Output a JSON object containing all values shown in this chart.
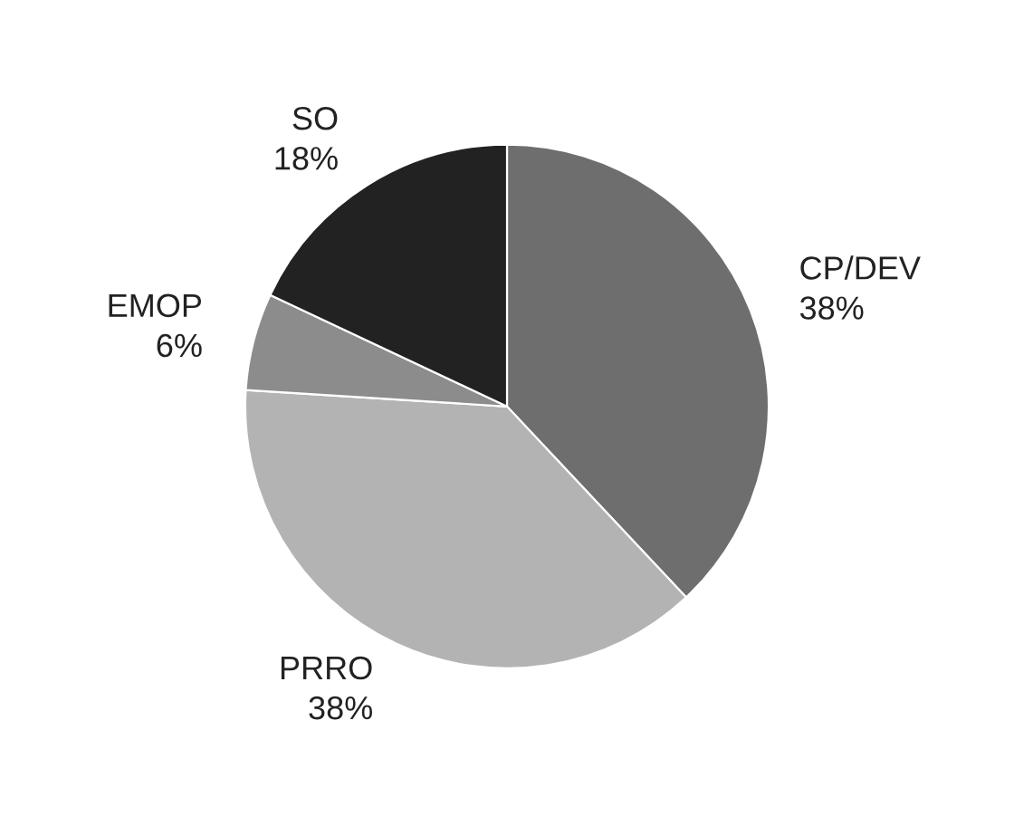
{
  "chart_data": {
    "type": "pie",
    "categories": [
      "CP/DEV",
      "PRRO",
      "EMOP",
      "SO"
    ],
    "values": [
      38,
      38,
      6,
      18
    ],
    "value_labels": [
      "38%",
      "38%",
      "6%",
      "18%"
    ],
    "colors": [
      "#6e6e6e",
      "#b3b3b3",
      "#8c8c8c",
      "#222222"
    ]
  }
}
